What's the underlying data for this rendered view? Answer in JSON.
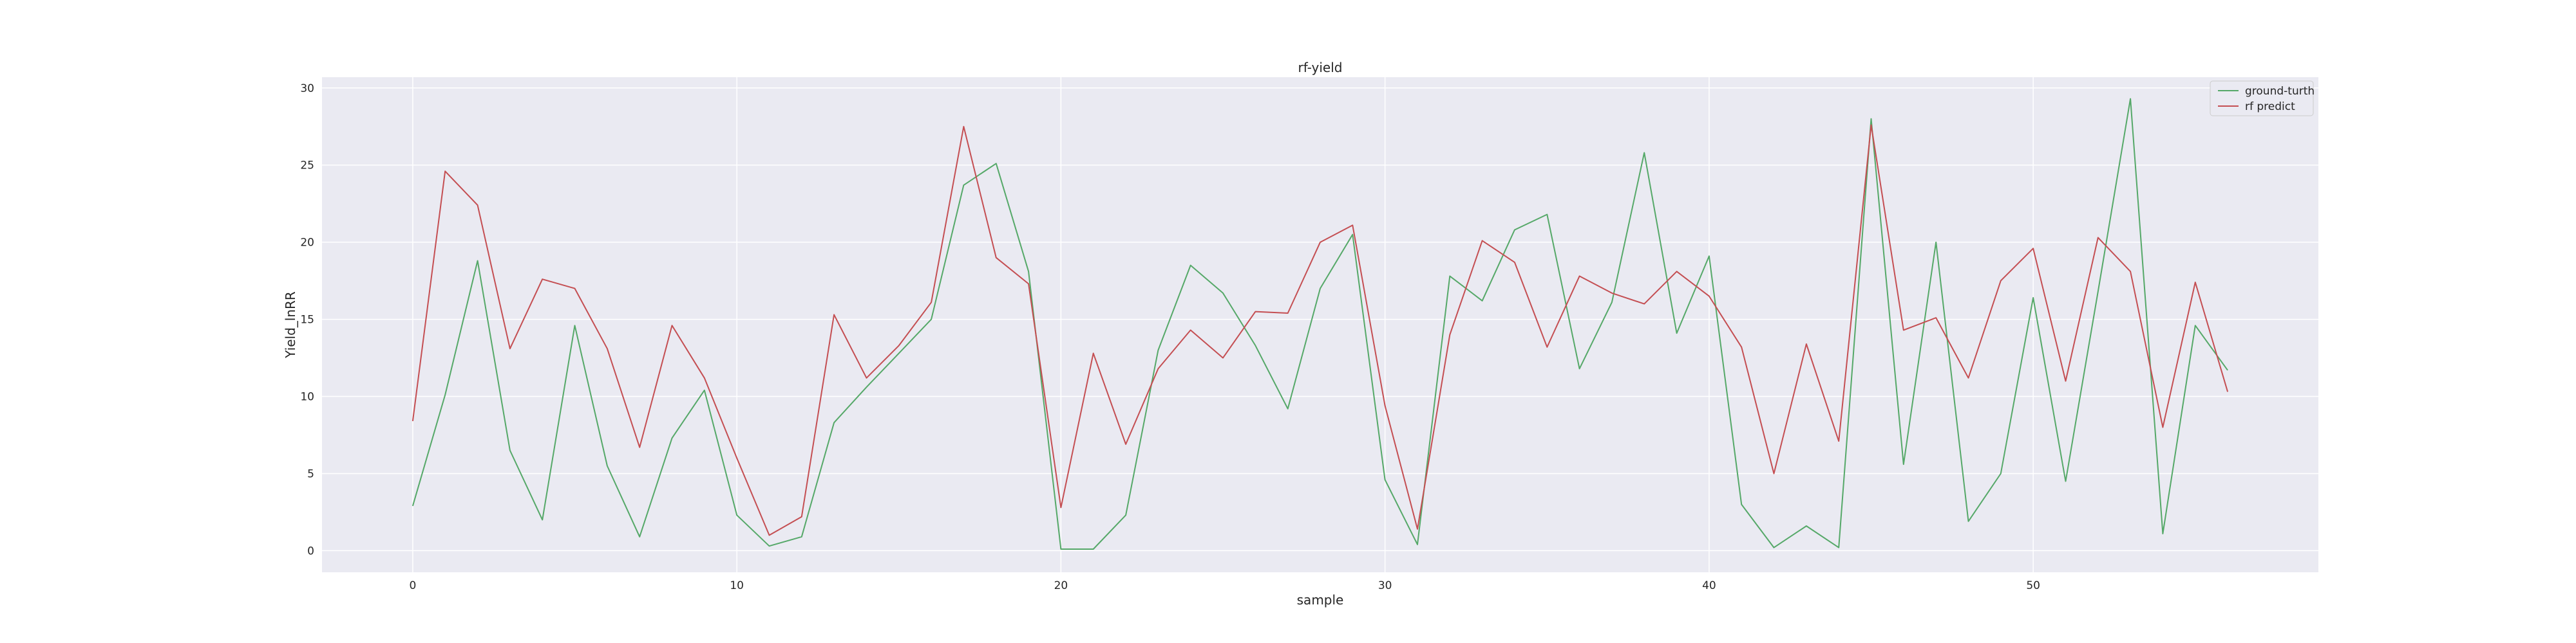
{
  "chart_data": {
    "type": "line",
    "title": "rf-yield",
    "xlabel": "sample",
    "ylabel": "Yield_lnRR",
    "xlim": [
      -2.8,
      58.8
    ],
    "ylim": [
      -1.4,
      30.7
    ],
    "xticks": [
      0,
      10,
      20,
      30,
      40,
      50
    ],
    "yticks": [
      0,
      5,
      10,
      15,
      20,
      25,
      30
    ],
    "grid": true,
    "legend_position": "top-right",
    "x": [
      0,
      1,
      2,
      3,
      4,
      5,
      6,
      7,
      8,
      9,
      10,
      11,
      12,
      13,
      14,
      15,
      16,
      17,
      18,
      19,
      20,
      21,
      22,
      23,
      24,
      25,
      26,
      27,
      28,
      29,
      30,
      31,
      32,
      33,
      34,
      35,
      36,
      37,
      38,
      39,
      40,
      41,
      42,
      43,
      44,
      45,
      46,
      47,
      48,
      49,
      50,
      51,
      52,
      53,
      54,
      55,
      56
    ],
    "series": [
      {
        "name": "ground-turth",
        "color": "#55a868",
        "values": [
          2.9,
          10.1,
          18.8,
          6.5,
          2.0,
          14.6,
          5.5,
          0.9,
          7.3,
          10.4,
          2.3,
          0.3,
          0.9,
          8.3,
          10.6,
          12.8,
          15.0,
          23.7,
          25.1,
          18.1,
          0.1,
          0.1,
          2.3,
          13.0,
          18.5,
          16.7,
          13.3,
          9.2,
          17.0,
          20.5,
          4.6,
          0.4,
          17.8,
          16.2,
          20.8,
          21.8,
          11.8,
          16.1,
          25.8,
          14.1,
          19.1,
          3.0,
          0.2,
          1.6,
          0.2,
          28.0,
          5.6,
          20.0,
          1.9,
          5.0,
          16.4,
          4.5,
          16.8,
          29.3,
          1.1,
          14.6,
          11.7
        ]
      },
      {
        "name": "rf predict",
        "color": "#c44e52",
        "values": [
          8.4,
          24.6,
          22.4,
          13.1,
          17.6,
          17.0,
          13.1,
          6.7,
          14.6,
          11.2,
          6.0,
          1.0,
          2.2,
          15.3,
          11.2,
          13.3,
          16.1,
          27.5,
          19.0,
          17.3,
          2.8,
          12.8,
          6.9,
          11.8,
          14.3,
          12.5,
          15.5,
          15.4,
          20.0,
          21.1,
          9.4,
          1.4,
          14.0,
          20.1,
          18.7,
          13.2,
          17.8,
          16.7,
          16.0,
          18.1,
          16.5,
          13.2,
          5.0,
          13.4,
          7.1,
          27.6,
          14.3,
          15.1,
          11.2,
          17.5,
          19.6,
          11.0,
          20.3,
          18.1,
          8.0,
          17.4,
          10.3
        ]
      }
    ]
  }
}
